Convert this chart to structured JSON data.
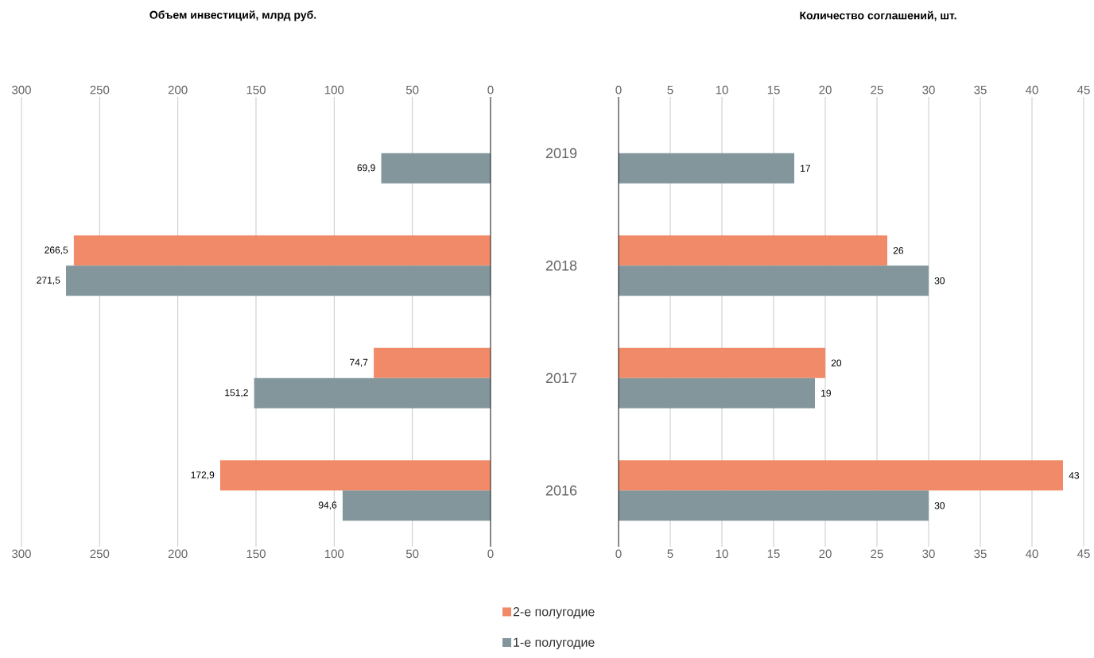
{
  "chart_data": [
    {
      "type": "bar",
      "orientation": "horizontal",
      "title": "Объем инвестиций, млрд руб.",
      "categories": [
        "2019",
        "2018",
        "2017",
        "2016"
      ],
      "series": [
        {
          "name": "2-е полугодие",
          "color": "#f08a68",
          "values": [
            null,
            266.5,
            74.7,
            172.9
          ],
          "value_labels": [
            null,
            "266,5",
            "74,7",
            "172,9"
          ]
        },
        {
          "name": "1-е полугодие",
          "color": "#82969c",
          "values": [
            69.9,
            271.5,
            151.2,
            94.6
          ],
          "value_labels": [
            "69,9",
            "271,5",
            "151,2",
            "94,6"
          ]
        }
      ],
      "xlim": [
        300,
        0
      ],
      "xticks": [
        300,
        250,
        200,
        150,
        100,
        50,
        0
      ],
      "x2lim": [
        300,
        0
      ],
      "x2ticks": [
        300,
        250,
        200,
        150,
        100,
        50,
        0
      ],
      "grid": "x",
      "legend": "bottom",
      "tick_labels": "x"
    },
    {
      "type": "bar",
      "orientation": "horizontal",
      "title": "Количество соглашений, шт.",
      "categories": [
        "2019",
        "2018",
        "2017",
        "2016"
      ],
      "series": [
        {
          "color": "#f08a68",
          "values": [
            null,
            26,
            20,
            43
          ],
          "value_labels": [
            null,
            "26",
            "20",
            "43"
          ]
        },
        {
          "color": "#82969c",
          "values": [
            17,
            30,
            19,
            30
          ],
          "value_labels": [
            "17",
            "30",
            "19",
            "30"
          ]
        }
      ],
      "xlim": [
        0,
        45
      ],
      "xticks": [
        0,
        5,
        10,
        15,
        20,
        25,
        30,
        35,
        40,
        45
      ],
      "x2lim": [
        0,
        45
      ],
      "x2ticks": [
        0,
        5,
        10,
        15,
        20,
        25,
        30,
        35,
        40,
        45
      ],
      "grid": "x"
    }
  ]
}
